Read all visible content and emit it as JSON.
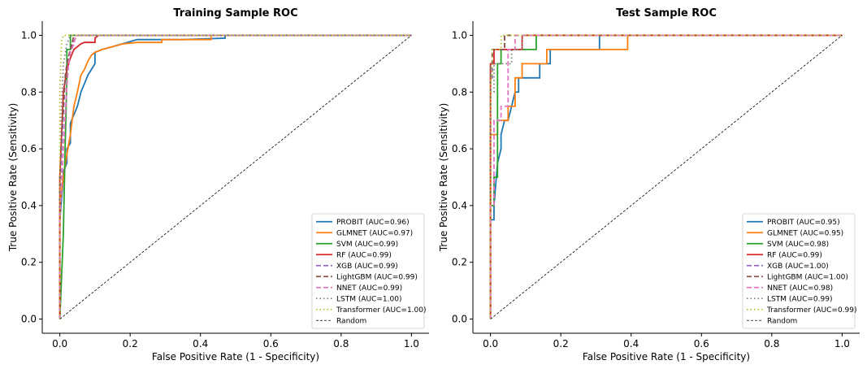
{
  "chart_data": [
    {
      "type": "line",
      "title": "Training Sample ROC",
      "xlabel": "False Positive Rate (1 - Specificity)",
      "ylabel": "True Positive Rate (Sensitivity)",
      "xlim": [
        -0.05,
        1.05
      ],
      "ylim": [
        -0.05,
        1.05
      ],
      "xticks": [
        "0.0",
        "0.2",
        "0.4",
        "0.6",
        "0.8",
        "1.0"
      ],
      "yticks": [
        "0.0",
        "0.2",
        "0.4",
        "0.6",
        "0.8",
        "1.0"
      ],
      "grid": false,
      "legend_position": "lower-right",
      "series": [
        {
          "name": "PROBIT (AUC=0.96)",
          "color": "#1f77b4",
          "dash": "solid",
          "x": [
            0,
            0,
            0.01,
            0.01,
            0.02,
            0.02,
            0.03,
            0.03,
            0.04,
            0.05,
            0.06,
            0.07,
            0.08,
            0.09,
            0.1,
            0.1,
            0.12,
            0.15,
            0.22,
            0.35,
            0.47,
            0.47,
            1.0
          ],
          "y": [
            0,
            0.35,
            0.5,
            0.52,
            0.55,
            0.6,
            0.62,
            0.69,
            0.72,
            0.75,
            0.8,
            0.83,
            0.86,
            0.88,
            0.9,
            0.94,
            0.95,
            0.96,
            0.985,
            0.985,
            0.99,
            1.0,
            1.0
          ]
        },
        {
          "name": "GLMNET (AUC=0.97)",
          "color": "#ff7f0e",
          "dash": "solid",
          "x": [
            0,
            0,
            0.01,
            0.02,
            0.03,
            0.04,
            0.05,
            0.06,
            0.07,
            0.08,
            0.09,
            0.1,
            0.12,
            0.15,
            0.18,
            0.22,
            0.29,
            0.29,
            0.43,
            0.43,
            1.0
          ],
          "y": [
            0,
            0.4,
            0.5,
            0.58,
            0.65,
            0.75,
            0.8,
            0.86,
            0.88,
            0.91,
            0.93,
            0.94,
            0.95,
            0.96,
            0.97,
            0.975,
            0.975,
            0.985,
            0.985,
            1.0,
            1.0
          ]
        },
        {
          "name": "SVM (AUC=0.99)",
          "color": "#2ca02c",
          "dash": "solid",
          "x": [
            0,
            0.005,
            0.01,
            0.015,
            0.02,
            0.02,
            0.03,
            0.03,
            1.0
          ],
          "y": [
            0,
            0.15,
            0.3,
            0.6,
            0.85,
            0.95,
            0.95,
            1.0,
            1.0
          ]
        },
        {
          "name": "RF (AUC=0.99)",
          "color": "#d62728",
          "dash": "solid",
          "x": [
            0,
            0,
            0.005,
            0.01,
            0.02,
            0.03,
            0.04,
            0.05,
            0.06,
            0.07,
            0.1,
            0.1,
            0.11,
            1.0
          ],
          "y": [
            0,
            0.5,
            0.65,
            0.8,
            0.88,
            0.92,
            0.95,
            0.96,
            0.97,
            0.975,
            0.975,
            0.99,
            1.0,
            1.0
          ]
        },
        {
          "name": "XGB (AUC=0.99)",
          "color": "#9467bd",
          "dash": "dashed",
          "x": [
            0,
            0,
            0.005,
            0.01,
            0.015,
            0.02,
            0.03,
            0.04,
            0.05,
            1.0
          ],
          "y": [
            0,
            0.45,
            0.6,
            0.72,
            0.85,
            0.9,
            0.95,
            0.98,
            1.0,
            1.0
          ]
        },
        {
          "name": "LightGBM (AUC=0.99)",
          "color": "#8c564b",
          "dash": "dashed",
          "x": [
            0,
            0,
            0.005,
            0.01,
            0.015,
            0.02,
            0.03,
            0.04,
            1.0
          ],
          "y": [
            0,
            0.5,
            0.65,
            0.75,
            0.85,
            0.9,
            0.95,
            1.0,
            1.0
          ]
        },
        {
          "name": "NNET (AUC=0.99)",
          "color": "#e377c2",
          "dash": "dashed",
          "x": [
            0,
            0,
            0.01,
            0.02,
            0.025,
            0.03,
            0.04,
            0.045,
            1.0
          ],
          "y": [
            0,
            0.35,
            0.6,
            0.82,
            0.9,
            0.94,
            0.97,
            1.0,
            1.0
          ]
        },
        {
          "name": "LSTM (AUC=1.00)",
          "color": "#7f7f7f",
          "dash": "dotted",
          "x": [
            0,
            0,
            0.005,
            0.01,
            0.02,
            0.03,
            1.0
          ],
          "y": [
            0,
            0.5,
            0.75,
            0.9,
            0.97,
            1.0,
            1.0
          ]
        },
        {
          "name": "Transformer (AUC=1.00)",
          "color": "#bcbd22",
          "dash": "dotted",
          "x": [
            0,
            0,
            0.005,
            0.01,
            1.0
          ],
          "y": [
            0,
            0.8,
            0.98,
            1.0,
            1.0
          ]
        },
        {
          "name": "Random",
          "color": "#000000",
          "dash": "thin-dashed",
          "x": [
            0,
            1
          ],
          "y": [
            0,
            1
          ]
        }
      ]
    },
    {
      "type": "line",
      "title": "Test Sample ROC",
      "xlabel": "False Positive Rate (1 - Specificity)",
      "ylabel": "True Positive Rate (Sensitivity)",
      "xlim": [
        -0.05,
        1.05
      ],
      "ylim": [
        -0.05,
        1.05
      ],
      "xticks": [
        "0.0",
        "0.2",
        "0.4",
        "0.6",
        "0.8",
        "1.0"
      ],
      "yticks": [
        "0.0",
        "0.2",
        "0.4",
        "0.6",
        "0.8",
        "1.0"
      ],
      "grid": false,
      "legend_position": "lower-right",
      "series": [
        {
          "name": "PROBIT (AUC=0.95)",
          "color": "#1f77b4",
          "dash": "solid",
          "x": [
            0,
            0,
            0.01,
            0.01,
            0.02,
            0.03,
            0.03,
            0.04,
            0.05,
            0.06,
            0.07,
            0.08,
            0.08,
            0.14,
            0.14,
            0.17,
            0.17,
            0.31,
            0.31,
            1.0
          ],
          "y": [
            0,
            0.35,
            0.35,
            0.4,
            0.55,
            0.6,
            0.65,
            0.7,
            0.7,
            0.75,
            0.8,
            0.8,
            0.85,
            0.85,
            0.9,
            0.9,
            0.95,
            0.95,
            1.0,
            1.0
          ]
        },
        {
          "name": "GLMNET (AUC=0.95)",
          "color": "#ff7f0e",
          "dash": "solid",
          "x": [
            0,
            0,
            0.02,
            0.02,
            0.05,
            0.05,
            0.07,
            0.07,
            0.09,
            0.09,
            0.16,
            0.16,
            0.39,
            0.39,
            1.0
          ],
          "y": [
            0,
            0.65,
            0.65,
            0.7,
            0.7,
            0.75,
            0.75,
            0.85,
            0.85,
            0.9,
            0.9,
            0.95,
            0.95,
            1.0,
            1.0
          ]
        },
        {
          "name": "SVM (AUC=0.98)",
          "color": "#2ca02c",
          "dash": "solid",
          "x": [
            0,
            0,
            0.01,
            0.01,
            0.02,
            0.02,
            0.03,
            0.03,
            0.13,
            0.13,
            1.0
          ],
          "y": [
            0,
            0.4,
            0.4,
            0.5,
            0.5,
            0.9,
            0.9,
            0.95,
            0.95,
            1.0,
            1.0
          ]
        },
        {
          "name": "RF (AUC=0.99)",
          "color": "#d62728",
          "dash": "solid",
          "x": [
            0,
            0,
            0.01,
            0.01,
            0.09,
            0.09,
            1.0
          ],
          "y": [
            0,
            0.9,
            0.9,
            0.95,
            0.95,
            1.0,
            1.0
          ]
        },
        {
          "name": "XGB (AUC=1.00)",
          "color": "#9467bd",
          "dash": "dashed",
          "x": [
            0,
            0,
            0.005,
            0.005,
            0.04,
            0.04,
            1.0
          ],
          "y": [
            0,
            0.85,
            0.85,
            0.95,
            0.95,
            1.0,
            1.0
          ]
        },
        {
          "name": "LightGBM (AUC=1.00)",
          "color": "#8c564b",
          "dash": "dashed",
          "x": [
            0,
            0,
            0.005,
            0.005,
            0.04,
            0.04,
            1.0
          ],
          "y": [
            0,
            0.9,
            0.9,
            0.95,
            0.95,
            1.0,
            1.0
          ]
        },
        {
          "name": "NNET (AUC=0.98)",
          "color": "#e377c2",
          "dash": "dashed",
          "x": [
            0,
            0,
            0.01,
            0.01,
            0.03,
            0.03,
            0.05,
            0.05,
            0.07,
            0.07,
            1.0
          ],
          "y": [
            0,
            0.4,
            0.4,
            0.7,
            0.7,
            0.75,
            0.75,
            0.95,
            0.95,
            1.0,
            1.0
          ]
        },
        {
          "name": "LSTM (AUC=0.99)",
          "color": "#7f7f7f",
          "dash": "dotted",
          "x": [
            0,
            0,
            0.01,
            0.01,
            0.06,
            0.06,
            0.09,
            0.09,
            1.0
          ],
          "y": [
            0,
            0.8,
            0.8,
            0.9,
            0.9,
            0.95,
            0.95,
            1.0,
            1.0
          ]
        },
        {
          "name": "Transformer (AUC=0.99)",
          "color": "#bcbd22",
          "dash": "dotted",
          "x": [
            0,
            0,
            0.005,
            0.005,
            0.03,
            0.03,
            1.0
          ],
          "y": [
            0,
            0.85,
            0.85,
            0.95,
            0.95,
            1.0,
            1.0
          ]
        },
        {
          "name": "Random",
          "color": "#000000",
          "dash": "thin-dashed",
          "x": [
            0,
            1
          ],
          "y": [
            0,
            1
          ]
        }
      ]
    }
  ]
}
